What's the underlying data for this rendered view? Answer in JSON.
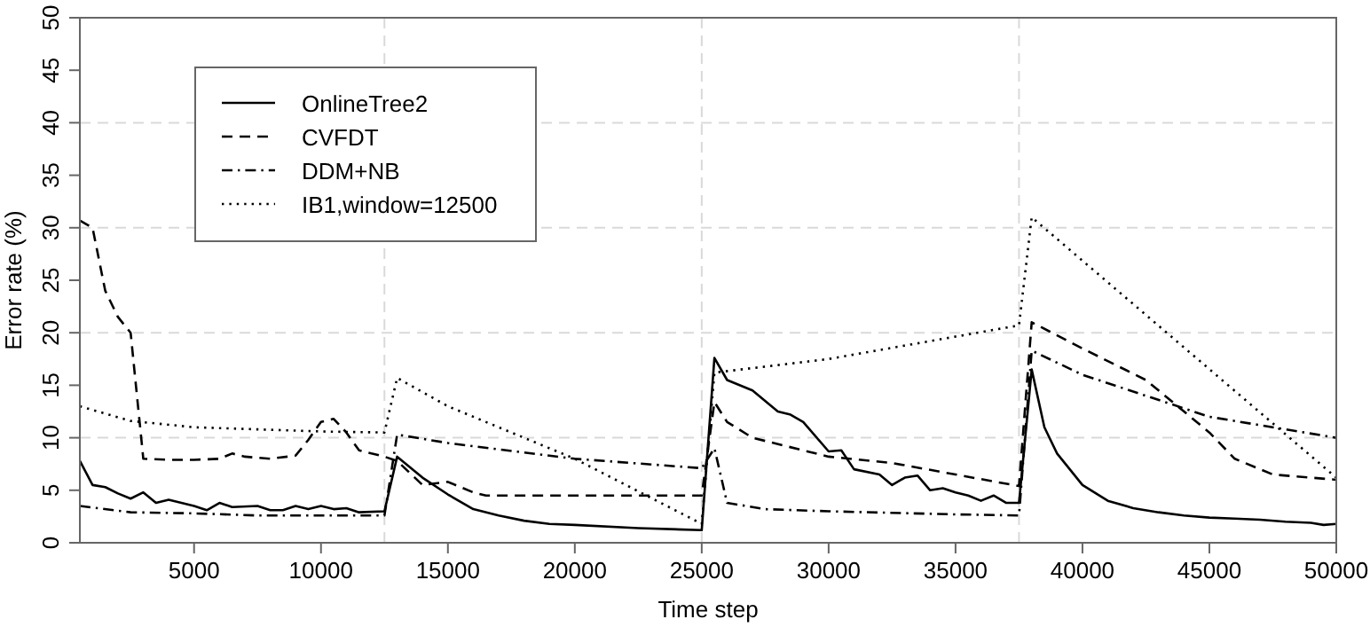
{
  "chart_data": {
    "type": "line",
    "xlabel": "Time step",
    "ylabel": "Error rate (%)",
    "xlim": [
      500,
      50000
    ],
    "ylim": [
      0,
      50
    ],
    "xticks": [
      5000,
      10000,
      15000,
      20000,
      25000,
      30000,
      35000,
      40000,
      45000,
      50000
    ],
    "yticks": [
      0,
      5,
      10,
      15,
      20,
      25,
      30,
      35,
      40,
      45,
      50
    ],
    "grid": false,
    "legend": "top left",
    "ref_lines": [
      {
        "axis": "x",
        "value": 12500,
        "color": "#d9d9d9",
        "line_style": "dashed"
      },
      {
        "axis": "x",
        "value": 25000,
        "color": "#d9d9d9",
        "line_style": "dashed"
      },
      {
        "axis": "x",
        "value": 37500,
        "color": "#d9d9d9",
        "line_style": "dashed"
      },
      {
        "axis": "y",
        "value": 10,
        "color": "#d9d9d9",
        "line_style": "dashed"
      },
      {
        "axis": "y",
        "value": 20,
        "color": "#d9d9d9",
        "line_style": "dashed"
      },
      {
        "axis": "y",
        "value": 30,
        "color": "#d9d9d9",
        "line_style": "dashed"
      },
      {
        "axis": "y",
        "value": 40,
        "color": "#d9d9d9",
        "line_style": "dashed"
      }
    ],
    "series": [
      {
        "name": "OnlineTree2",
        "color": "#000000",
        "line_style": "solid",
        "x": [
          500,
          1000,
          1500,
          2000,
          2500,
          3000,
          3500,
          4000,
          5000,
          5500,
          6000,
          6500,
          7500,
          8000,
          8500,
          9000,
          9500,
          10000,
          10500,
          11000,
          11500,
          12500,
          13000,
          14000,
          15000,
          16000,
          17000,
          18000,
          19000,
          20000,
          22500,
          25000,
          25500,
          26000,
          27000,
          28000,
          28500,
          29000,
          30000,
          30500,
          31000,
          32000,
          32500,
          33000,
          33500,
          34000,
          34500,
          35000,
          35500,
          36000,
          36500,
          37000,
          37500,
          38000,
          38500,
          39000,
          40000,
          41000,
          42000,
          43000,
          44000,
          45000,
          46000,
          47000,
          48000,
          49000,
          49500,
          50000
        ],
        "values": [
          7.8,
          5.5,
          5.3,
          4.7,
          4.2,
          4.8,
          3.8,
          4.1,
          3.5,
          3.1,
          3.8,
          3.4,
          3.5,
          3.1,
          3.1,
          3.5,
          3.2,
          3.5,
          3.2,
          3.3,
          2.9,
          3.0,
          8.2,
          6.2,
          4.6,
          3.2,
          2.6,
          2.1,
          1.8,
          1.7,
          1.4,
          1.2,
          17.6,
          15.5,
          14.5,
          12.5,
          12.2,
          11.5,
          8.7,
          8.8,
          7.0,
          6.5,
          5.5,
          6.2,
          6.4,
          5.0,
          5.2,
          4.8,
          4.5,
          4.0,
          4.5,
          3.8,
          3.8,
          16.5,
          11.0,
          8.5,
          5.5,
          4.0,
          3.3,
          2.9,
          2.6,
          2.4,
          2.3,
          2.2,
          2.0,
          1.9,
          1.7,
          1.8
        ]
      },
      {
        "name": "CVFDT",
        "color": "#000000",
        "line_style": "dashed",
        "x": [
          500,
          1000,
          1500,
          2000,
          2500,
          3000,
          4000,
          5000,
          6000,
          6500,
          7000,
          8000,
          9000,
          9500,
          10000,
          10500,
          11000,
          11500,
          12500,
          13000,
          14000,
          15000,
          16000,
          16500,
          20000,
          25000,
          25500,
          26000,
          27000,
          30000,
          32500,
          35000,
          37500,
          38000,
          40000,
          42500,
          45000,
          46000,
          47500,
          50000
        ],
        "values": [
          30.7,
          30.0,
          24.0,
          21.5,
          20.0,
          8.0,
          7.9,
          7.9,
          8.0,
          8.5,
          8.2,
          8.0,
          8.3,
          9.8,
          11.5,
          11.8,
          10.5,
          8.8,
          8.2,
          7.8,
          5.5,
          5.8,
          4.8,
          4.5,
          4.5,
          4.5,
          13.4,
          11.5,
          10.0,
          8.2,
          7.6,
          6.5,
          5.4,
          21.0,
          18.5,
          15.5,
          10.5,
          8.0,
          6.5,
          6.0
        ]
      },
      {
        "name": "DDM+NB",
        "color": "#000000",
        "line_style": "dashdot",
        "x": [
          500,
          2500,
          5000,
          7500,
          10000,
          12500,
          13000,
          15000,
          20000,
          25000,
          25500,
          26000,
          27500,
          30000,
          35000,
          37500,
          38000,
          40000,
          45000,
          50000
        ],
        "values": [
          3.5,
          2.9,
          2.8,
          2.6,
          2.6,
          2.6,
          10.3,
          9.5,
          8.0,
          7.1,
          9.0,
          3.8,
          3.2,
          3.0,
          2.7,
          2.6,
          18.3,
          16.0,
          12.0,
          10.0
        ]
      },
      {
        "name": "IB1,window=12500",
        "color": "#000000",
        "line_style": "dotted",
        "x": [
          500,
          2500,
          5000,
          7500,
          10000,
          12500,
          13000,
          15000,
          20000,
          25000,
          25500,
          30000,
          37500,
          38000,
          50000
        ],
        "values": [
          13.0,
          11.6,
          11.0,
          10.8,
          10.6,
          10.5,
          15.7,
          13.0,
          8.0,
          1.8,
          16.2,
          17.5,
          20.7,
          31.0,
          6.2
        ]
      }
    ]
  }
}
